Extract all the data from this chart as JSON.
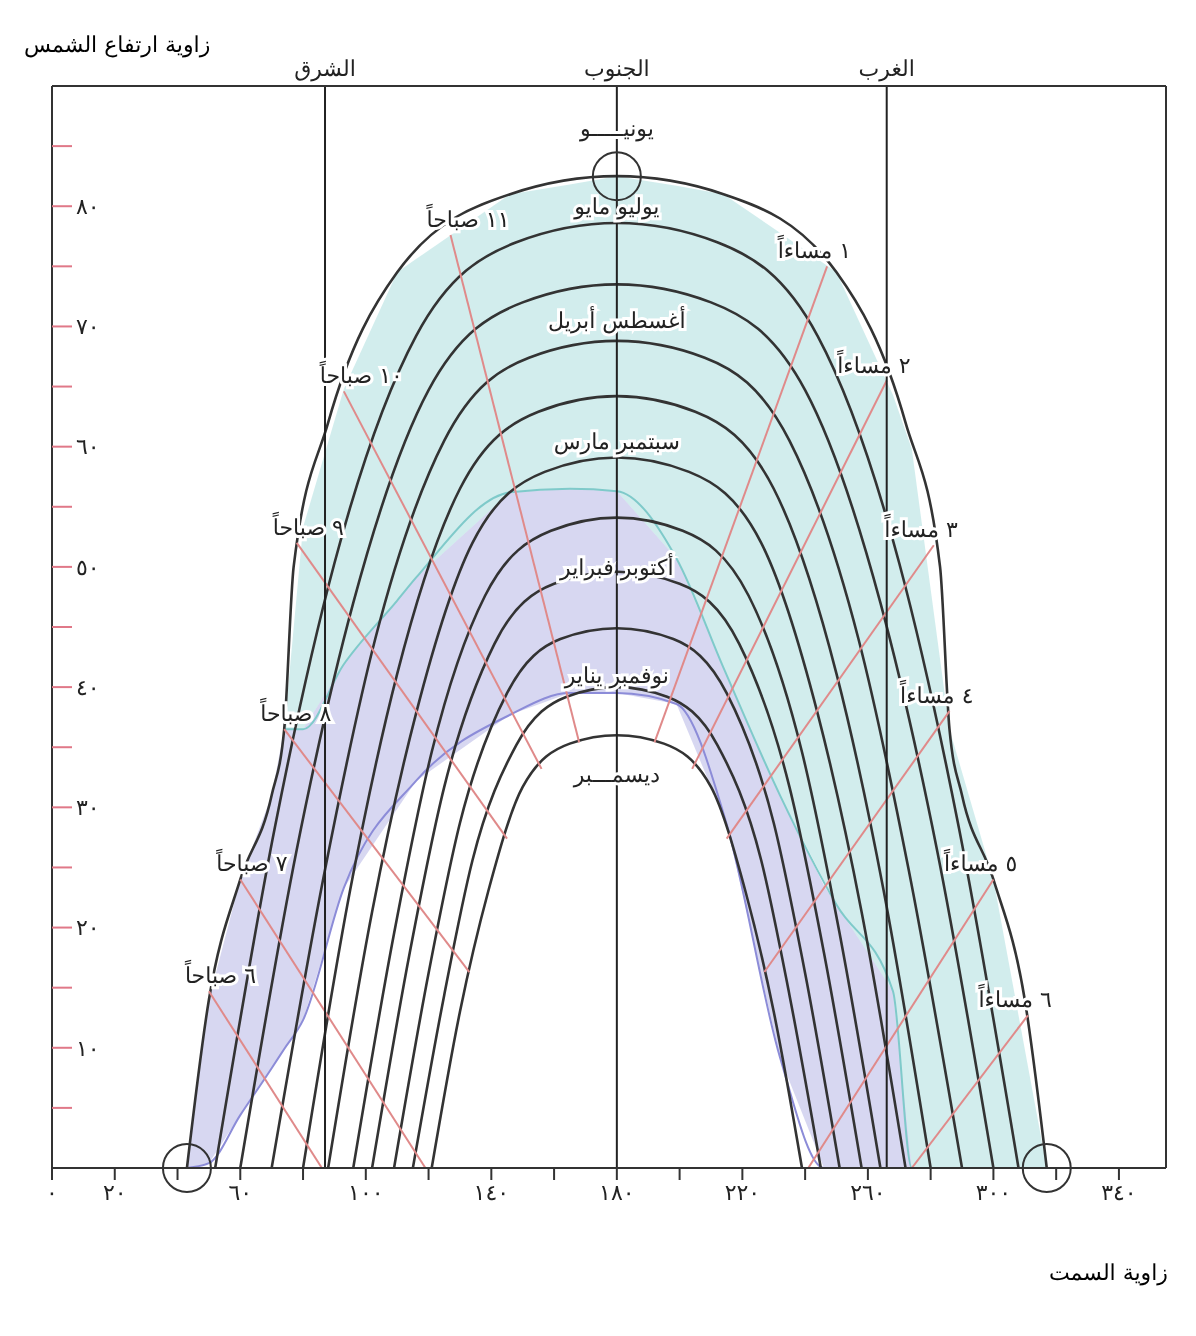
{
  "chart_data": {
    "type": "line",
    "xlabel": "زاوية السمت",
    "ylabel": "زاوية ارتفاع الشمس",
    "xlim": [
      0,
      355
    ],
    "ylim": [
      0,
      90
    ],
    "xticks": [
      {
        "value": 0,
        "label": "٠"
      },
      {
        "value": 20,
        "label": "٢٠"
      },
      {
        "value": 40,
        "label": null
      },
      {
        "value": 60,
        "label": "٦٠"
      },
      {
        "value": 80,
        "label": null
      },
      {
        "value": 100,
        "label": "١٠٠"
      },
      {
        "value": 120,
        "label": null
      },
      {
        "value": 140,
        "label": "١٤٠"
      },
      {
        "value": 160,
        "label": null
      },
      {
        "value": 180,
        "label": "١٨٠"
      },
      {
        "value": 200,
        "label": null
      },
      {
        "value": 220,
        "label": "٢٢٠"
      },
      {
        "value": 240,
        "label": null
      },
      {
        "value": 260,
        "label": "٢٦٠"
      },
      {
        "value": 280,
        "label": null
      },
      {
        "value": 300,
        "label": "٣٠٠"
      },
      {
        "value": 320,
        "label": null
      },
      {
        "value": 340,
        "label": "٣٤٠"
      }
    ],
    "yticks": [
      {
        "value": 5,
        "label": null
      },
      {
        "value": 10,
        "label": "١٠"
      },
      {
        "value": 15,
        "label": null
      },
      {
        "value": 20,
        "label": "٢٠"
      },
      {
        "value": 25,
        "label": null
      },
      {
        "value": 30,
        "label": "٣٠"
      },
      {
        "value": 35,
        "label": null
      },
      {
        "value": 40,
        "label": "٤٠"
      },
      {
        "value": 45,
        "label": null
      },
      {
        "value": 50,
        "label": "٥٠"
      },
      {
        "value": 55,
        "label": null
      },
      {
        "value": 60,
        "label": "٦٠"
      },
      {
        "value": 65,
        "label": null
      },
      {
        "value": 70,
        "label": "٧٠"
      },
      {
        "value": 75,
        "label": null
      },
      {
        "value": 80,
        "label": "٨٠"
      },
      {
        "value": 85,
        "label": null
      }
    ],
    "grid": false,
    "marker": "none",
    "line_style": "solid",
    "ref_lines": [
      {
        "axis": "x",
        "value": 87,
        "label": "الشرق",
        "color": "#222222"
      },
      {
        "axis": "x",
        "value": 180,
        "label": "الجنوب",
        "color": "#222222"
      },
      {
        "axis": "x",
        "value": 266,
        "label": "الغرب",
        "color": "#222222"
      }
    ],
    "series": [
      {
        "type": "line",
        "color": "#7fcaca",
        "x": [
          74,
          80,
          93,
          110,
          116,
          146,
          165,
          180,
          199,
          214,
          232,
          250,
          268,
          274,
          286,
          300,
          317
        ],
        "values": [
          36.5,
          36.5,
          41.9,
          47.2,
          49.1,
          56.2,
          56.5,
          56.3,
          50.7,
          41.6,
          31,
          21.9,
          14.7,
          0,
          0,
          0,
          0
        ],
        "upper": [
          36.5,
          53.3,
          64.8,
          74.5,
          75.6,
          81,
          81.8,
          82.5,
          81.7,
          81,
          77.8,
          74.5,
          64.3,
          59.8,
          36.5,
          24,
          0
        ],
        "lower": [
          36.5,
          36.5,
          41.9,
          47.2,
          49.1,
          56.2,
          56.5,
          56.3,
          50.7,
          41.6,
          31,
          21.9,
          14.7,
          0,
          0,
          0,
          0
        ]
      },
      {
        "type": "line",
        "color": "#8c8cd8",
        "x": [
          43,
          50,
          60,
          70,
          74,
          80,
          93,
          116,
          146,
          165,
          180,
          199,
          215,
          232,
          246,
          268,
          274
        ],
        "values": [
          0,
          0.4,
          4.4,
          8.3,
          9.9,
          12.3,
          23.3,
          32.2,
          37.7,
          39.5,
          39.5,
          38.6,
          28.6,
          9.2,
          0,
          0,
          0
        ],
        "upper": [
          0,
          14,
          24,
          31,
          36.5,
          36.5,
          41.9,
          49.1,
          56.2,
          56.5,
          56.3,
          50.7,
          41,
          31,
          23.5,
          14.7,
          0
        ],
        "lower": [
          0,
          0.4,
          4.4,
          8.3,
          9.9,
          12.3,
          23.3,
          32.2,
          37.7,
          39.5,
          39.5,
          38.6,
          28.6,
          9.2,
          0,
          0,
          0
        ]
      },
      {
        "color": "#333333",
        "x": [
          43,
          50,
          60,
          70,
          74,
          77,
          88,
          110,
          146,
          180,
          214,
          250,
          272,
          283,
          286,
          290,
          300,
          310,
          317
        ],
        "values": [
          0,
          14,
          24,
          31,
          36.5,
          50,
          62,
          74.5,
          81,
          82.5,
          81,
          74.5,
          62,
          50,
          36.5,
          31,
          24,
          14,
          0
        ]
      },
      {
        "color": "#333333",
        "x": [
          52,
          71,
          90,
          116,
          148,
          180,
          212,
          244,
          270,
          289,
          308
        ],
        "values": [
          0,
          28.3,
          50.3,
          69.2,
          77,
          78.6,
          77,
          69.2,
          50.3,
          28.3,
          0
        ]
      },
      {
        "color": "#333333",
        "x": [
          60,
          78,
          96,
          120,
          150,
          180,
          210,
          240,
          264,
          282,
          300
        ],
        "values": [
          0,
          26.5,
          47,
          64.7,
          72,
          73.5,
          72,
          64.7,
          47,
          26.5,
          0
        ]
      },
      {
        "color": "#333333",
        "x": [
          70,
          87,
          103,
          125,
          152,
          180,
          208,
          235,
          257,
          273,
          290
        ],
        "values": [
          0,
          24.8,
          44,
          60.5,
          67.4,
          68.8,
          67.4,
          60.5,
          44,
          24.8,
          0
        ]
      },
      {
        "color": "#333333",
        "x": [
          80,
          95,
          110,
          130,
          155,
          180,
          205,
          230,
          250,
          265,
          280
        ],
        "values": [
          0,
          23.1,
          41.1,
          56.5,
          62.9,
          64.2,
          62.9,
          56.5,
          41.1,
          23.1,
          0
        ]
      },
      {
        "color": "#333333",
        "x": [
          88,
          102,
          116,
          134,
          157,
          180,
          203,
          226,
          244,
          258,
          272
        ],
        "values": [
          0,
          21.3,
          37.8,
          52,
          57.9,
          59.1,
          57.9,
          52,
          37.8,
          21.3,
          0
        ]
      },
      {
        "color": "#333333",
        "x": [
          96,
          109,
          121,
          138,
          159,
          180,
          201,
          222,
          239,
          251,
          264
        ],
        "values": [
          0,
          19.5,
          34.6,
          47.6,
          53,
          54.1,
          53,
          47.6,
          34.6,
          19.5,
          0
        ]
      },
      {
        "color": "#333333",
        "x": [
          102,
          114,
          125,
          141,
          160,
          180,
          200,
          219,
          235,
          246,
          258
        ],
        "values": [
          0,
          17.9,
          31.7,
          43.6,
          48.6,
          49.6,
          48.6,
          43.6,
          31.7,
          17.9,
          0
        ]
      },
      {
        "color": "#333333",
        "x": [
          109,
          120,
          130,
          145,
          162,
          180,
          198,
          215,
          230,
          240,
          251
        ],
        "values": [
          0,
          16.2,
          28.7,
          39.5,
          44,
          44.9,
          44,
          39.5,
          28.7,
          16.2,
          0
        ]
      },
      {
        "color": "#333333",
        "x": [
          115,
          125,
          134,
          148,
          164,
          180,
          196,
          212,
          226,
          235,
          245
        ],
        "values": [
          0,
          14.4,
          25.6,
          35.2,
          39.2,
          40,
          39.2,
          35.2,
          25.6,
          14.4,
          0
        ]
      },
      {
        "color": "#333333",
        "x": [
          121,
          130,
          139,
          150,
          165,
          180,
          195,
          210,
          221,
          230,
          239
        ],
        "values": [
          0,
          13,
          23,
          31.7,
          35.3,
          36,
          35.3,
          31.7,
          23,
          13,
          0
        ]
      },
      {
        "color": "#e08a8a",
        "x": [
          50,
          86
        ],
        "values": [
          14.7,
          0
        ]
      },
      {
        "color": "#e08a8a",
        "x": [
          60,
          119
        ],
        "values": [
          24,
          0
        ]
      },
      {
        "color": "#e08a8a",
        "x": [
          74,
          133
        ],
        "values": [
          36.5,
          16.3
        ]
      },
      {
        "color": "#e08a8a",
        "x": [
          78,
          145
        ],
        "values": [
          52,
          27.4
        ]
      },
      {
        "color": "#e08a8a",
        "x": [
          93,
          156
        ],
        "values": [
          64.6,
          33.2
        ]
      },
      {
        "color": "#e08a8a",
        "x": [
          127,
          168
        ],
        "values": [
          77.6,
          35.4
        ]
      },
      {
        "color": "#e08a8a",
        "x": [
          192,
          247
        ],
        "values": [
          35.4,
          75
        ]
      },
      {
        "color": "#e08a8a",
        "x": [
          204,
          266
        ],
        "values": [
          33.2,
          65.5
        ]
      },
      {
        "color": "#e08a8a",
        "x": [
          215,
          281
        ],
        "values": [
          27.4,
          51.8
        ]
      },
      {
        "color": "#e08a8a",
        "x": [
          227,
          286
        ],
        "values": [
          16.3,
          38
        ]
      },
      {
        "color": "#e08a8a",
        "x": [
          241,
          300
        ],
        "values": [
          0,
          24
        ]
      },
      {
        "color": "#e08a8a",
        "x": [
          274,
          311
        ],
        "values": [
          0,
          12.7
        ]
      }
    ],
    "annotations": [
      {
        "text": "يونيـــــو",
        "x": 180,
        "y": 86.5
      },
      {
        "text": "يوليو  مايو",
        "x": 180,
        "y": 80
      },
      {
        "text": "أغسطس  أبريل",
        "x": 180,
        "y": 70.5
      },
      {
        "text": "سبتمبر  مارس",
        "x": 180,
        "y": 60.5
      },
      {
        "text": "أكتوبر  فبراير",
        "x": 180,
        "y": 50
      },
      {
        "text": "نوفمبر  يناير",
        "x": 180,
        "y": 41
      },
      {
        "text": "ديسمـــبر",
        "x": 180,
        "y": 32.8
      },
      {
        "text": "٦ صباحاً",
        "x": 50,
        "y": 14.7
      },
      {
        "text": "٧ صباحاً",
        "x": 60,
        "y": 24
      },
      {
        "text": "٨ صباحاً",
        "x": 74,
        "y": 36.5
      },
      {
        "text": "٩ صباحاً",
        "x": 78,
        "y": 52
      },
      {
        "text": "١٠ صباحاً",
        "x": 93,
        "y": 64.6
      },
      {
        "text": "١١ صباحاً",
        "x": 127,
        "y": 77.6
      },
      {
        "text": "١ مساءاً",
        "x": 247,
        "y": 75
      },
      {
        "text": "٢ مساءاً",
        "x": 266,
        "y": 65.5
      },
      {
        "text": "٣ مساءاً",
        "x": 281,
        "y": 51.8
      },
      {
        "text": "٤ مساءاً",
        "x": 286,
        "y": 38
      },
      {
        "text": "٥ مساءاً",
        "x": 300,
        "y": 24
      },
      {
        "text": "٦ مساءاً",
        "x": 311,
        "y": 12.7
      }
    ]
  }
}
